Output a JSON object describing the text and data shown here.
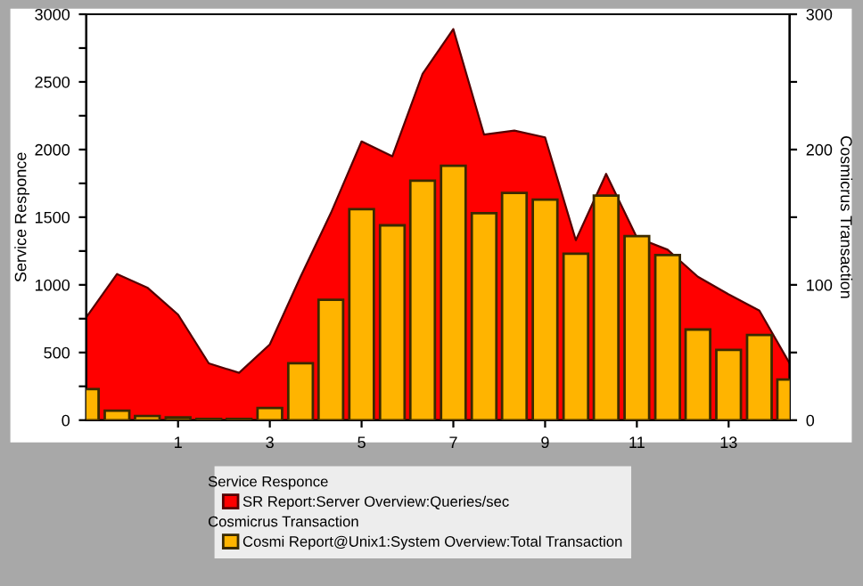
{
  "chart_data": {
    "type": "bar",
    "ylabel": "Service Responce",
    "y2label": "Cosmicrus Transaction",
    "x": [
      -1,
      -0.33,
      0.33,
      1,
      1.67,
      2.33,
      3,
      3.67,
      4.33,
      5,
      5.67,
      6.33,
      7,
      7.67,
      8.33,
      9,
      9.67,
      10.33,
      11,
      11.67,
      12.33,
      13,
      13.67,
      14.33
    ],
    "series": [
      {
        "name": "SR Report:Server Overview:Queries/sec",
        "type": "area",
        "color": "#ff0000",
        "values": [
          760,
          1080,
          980,
          780,
          420,
          350,
          560,
          1060,
          1530,
          2060,
          1950,
          2560,
          2890,
          2110,
          2140,
          2090,
          1330,
          1820,
          1350,
          1260,
          1060,
          930,
          810,
          420
        ]
      },
      {
        "name": "Cosmi Report@Unix1:System Overview:Total Transaction",
        "axis": "y2",
        "color": "#ffb400",
        "values": [
          23,
          7,
          3,
          2,
          1,
          1,
          9,
          42,
          89,
          156,
          144,
          177,
          188,
          153,
          168,
          163,
          123,
          166,
          136,
          122,
          67,
          52,
          63,
          30
        ]
      }
    ],
    "xlim": [
      -1,
      14.33
    ],
    "xticks": [
      1,
      3,
      5,
      7,
      9,
      11,
      13
    ],
    "ylim": [
      0,
      3000
    ],
    "yticks": [
      0,
      {
        "value": 250,
        "label": null
      },
      500,
      {
        "value": 750,
        "label": null
      },
      1000,
      {
        "value": 1250,
        "label": null
      },
      1500,
      {
        "value": 1750,
        "label": null
      },
      2000,
      {
        "value": 2250,
        "label": null
      },
      2500,
      {
        "value": 2750,
        "label": null
      },
      3000
    ],
    "y2lim": [
      0,
      300
    ],
    "y2ticks": [
      0,
      {
        "value": 50,
        "label": null
      },
      100,
      {
        "value": 150,
        "label": null
      },
      200,
      {
        "value": 250,
        "label": null
      },
      300
    ],
    "annotations": [
      "Service Responce",
      "Cosmicrus Transaction"
    ],
    "legend": "bottom",
    "grid": false
  }
}
